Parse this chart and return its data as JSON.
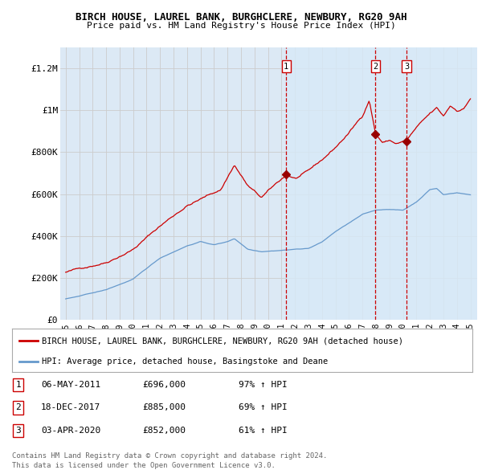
{
  "title": "BIRCH HOUSE, LAUREL BANK, BURGHCLERE, NEWBURY, RG20 9AH",
  "subtitle": "Price paid vs. HM Land Registry's House Price Index (HPI)",
  "red_label": "BIRCH HOUSE, LAUREL BANK, BURGHCLERE, NEWBURY, RG20 9AH (detached house)",
  "blue_label": "HPI: Average price, detached house, Basingstoke and Deane",
  "transactions": [
    {
      "num": 1,
      "date": "06-MAY-2011",
      "price": 696000,
      "pct": "97%",
      "dir": "↑",
      "year": 2011.35
    },
    {
      "num": 2,
      "date": "18-DEC-2017",
      "price": 885000,
      "pct": "69%",
      "dir": "↑",
      "year": 2017.96
    },
    {
      "num": 3,
      "date": "03-APR-2020",
      "price": 852000,
      "pct": "61%",
      "dir": "↑",
      "year": 2020.26
    }
  ],
  "footer1": "Contains HM Land Registry data © Crown copyright and database right 2024.",
  "footer2": "This data is licensed under the Open Government Licence v3.0.",
  "ylim": [
    0,
    1300000
  ],
  "yticks": [
    0,
    200000,
    400000,
    600000,
    800000,
    1000000,
    1200000
  ],
  "ytick_labels": [
    "£0",
    "£200K",
    "£400K",
    "£600K",
    "£800K",
    "£1M",
    "£1.2M"
  ],
  "red_color": "#cc0000",
  "blue_color": "#6699cc",
  "bg_color": "#dce9f5",
  "bg_color_highlight": "#cce0f0",
  "grid_color": "#cccccc",
  "vline_color": "#cc0000",
  "marker_box_color": "#cc0000",
  "xlim_left": 1994.6,
  "xlim_right": 2025.5
}
